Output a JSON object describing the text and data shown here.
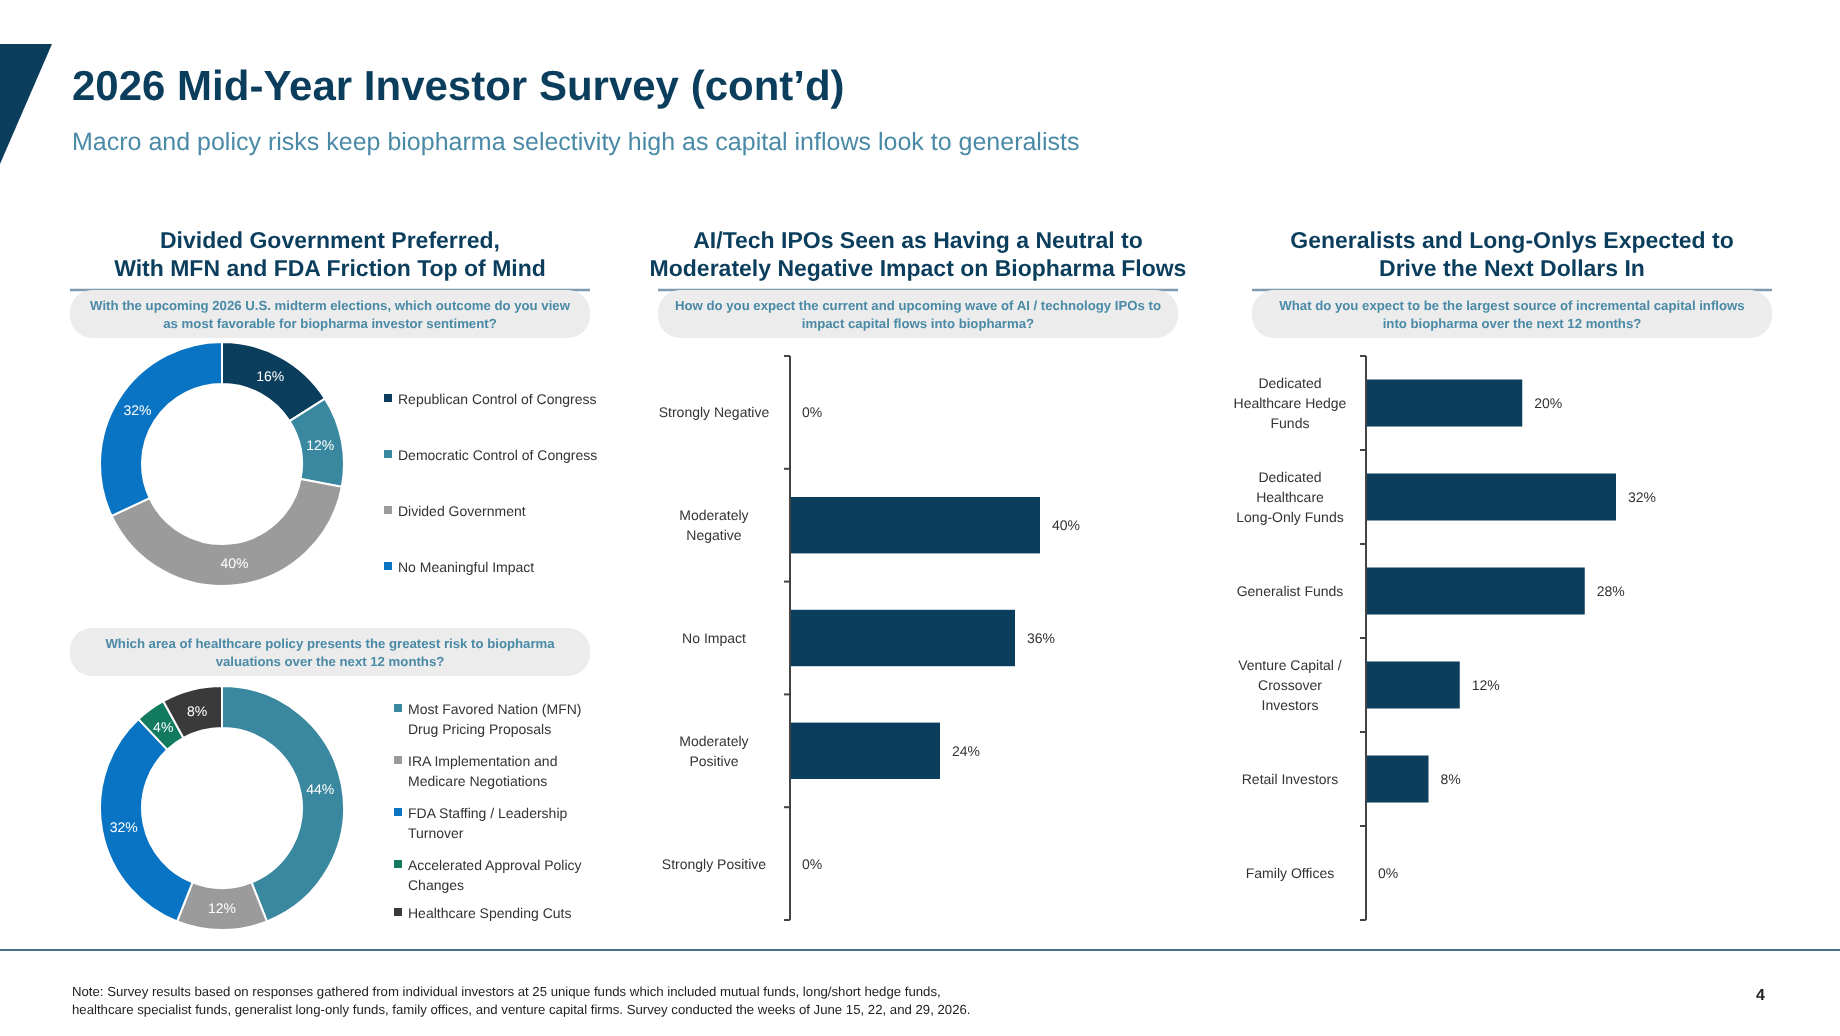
{
  "chart_data": [
    {
      "type": "donut",
      "title": "Divided Government Preferred,\nWith MFN and FDA Friction Top of Mind",
      "subtitle": "With the upcoming 2026 U.S. midterm elections, which outcome do you view\nas most favorable for biopharma investor sentiment?",
      "categories": [
        "Republican Control of Congress",
        "Democratic Control of Congress",
        "Divided Government",
        "No Meaningful Impact"
      ],
      "values": [
        16,
        12,
        40,
        32
      ],
      "value_labels": [
        "16%",
        "12%",
        "40%",
        "32%"
      ],
      "colors": [
        "#0b3d5c",
        "#3a87a0",
        "#9b9b9b",
        "#0a74c4"
      ],
      "legend": "right",
      "annotations": [
        "2026 Mid-Year Investor Survey (cont’d)",
        "Macro and policy risks keep biopharma selectivity high as capital inflows look to generalists",
        "Note: Survey results based on responses gathered from individual investors at 25 unique funds which included mutual funds, long/short hedge funds,\nhealthcare specialist funds, generalist long-only funds, family offices, and venture capital firms. Survey conducted the weeks of June 15, 22, and 29, 2026.",
        "4"
      ]
    },
    {
      "type": "donut",
      "subtitle": "Which area of healthcare policy presents the greatest risk to biopharma\nvaluations over the next 12 months?",
      "categories": [
        "Most Favored Nation (MFN) Drug Pricing Proposals",
        "IRA Implementation and Medicare Negotiations",
        "FDA Staffing / Leadership Turnover",
        "Accelerated Approval Policy Changes",
        "Healthcare Spending Cuts"
      ],
      "values": [
        44,
        12,
        32,
        4,
        8
      ],
      "value_labels": [
        "44%",
        "12%",
        "32%",
        "4%",
        "8%"
      ],
      "colors": [
        "#3a87a0",
        "#9b9b9b",
        "#0a74c4",
        "#127a5e",
        "#3a3a3a"
      ],
      "legend": "right"
    },
    {
      "type": "bar",
      "orientation": "horizontal",
      "title": "AI/Tech IPOs Seen as Having a Neutral to\nModerately Negative Impact on Biopharma Flows",
      "subtitle": "How do you expect the current and upcoming wave of AI / technology IPOs to\nimpact capital flows into biopharma?",
      "categories": [
        "Strongly Negative",
        "Moderately Negative",
        "No Impact",
        "Moderately Positive",
        "Strongly Positive"
      ],
      "values": [
        0,
        40,
        36,
        24,
        0
      ],
      "value_labels": [
        "0%",
        "40%",
        "36%",
        "24%",
        "0%"
      ],
      "color": "#0b3d5c"
    },
    {
      "type": "bar",
      "orientation": "horizontal",
      "title": "Generalists and Long-Onlys Expected to\nDrive the Next Dollars In",
      "subtitle": "What do you expect to be the largest source of incremental capital inflows\ninto biopharma over the next 12 months?",
      "categories": [
        "Dedicated Healthcare Hedge Funds",
        "Dedicated Healthcare Long-Only Funds",
        "Generalist Funds",
        "Venture Capital / Crossover Investors",
        "Retail Investors",
        "Family Offices"
      ],
      "values": [
        20,
        32,
        28,
        12,
        8,
        0
      ],
      "value_labels": [
        "20%",
        "32%",
        "28%",
        "12%",
        "8%",
        "0%"
      ],
      "color": "#0b3d5c"
    }
  ]
}
